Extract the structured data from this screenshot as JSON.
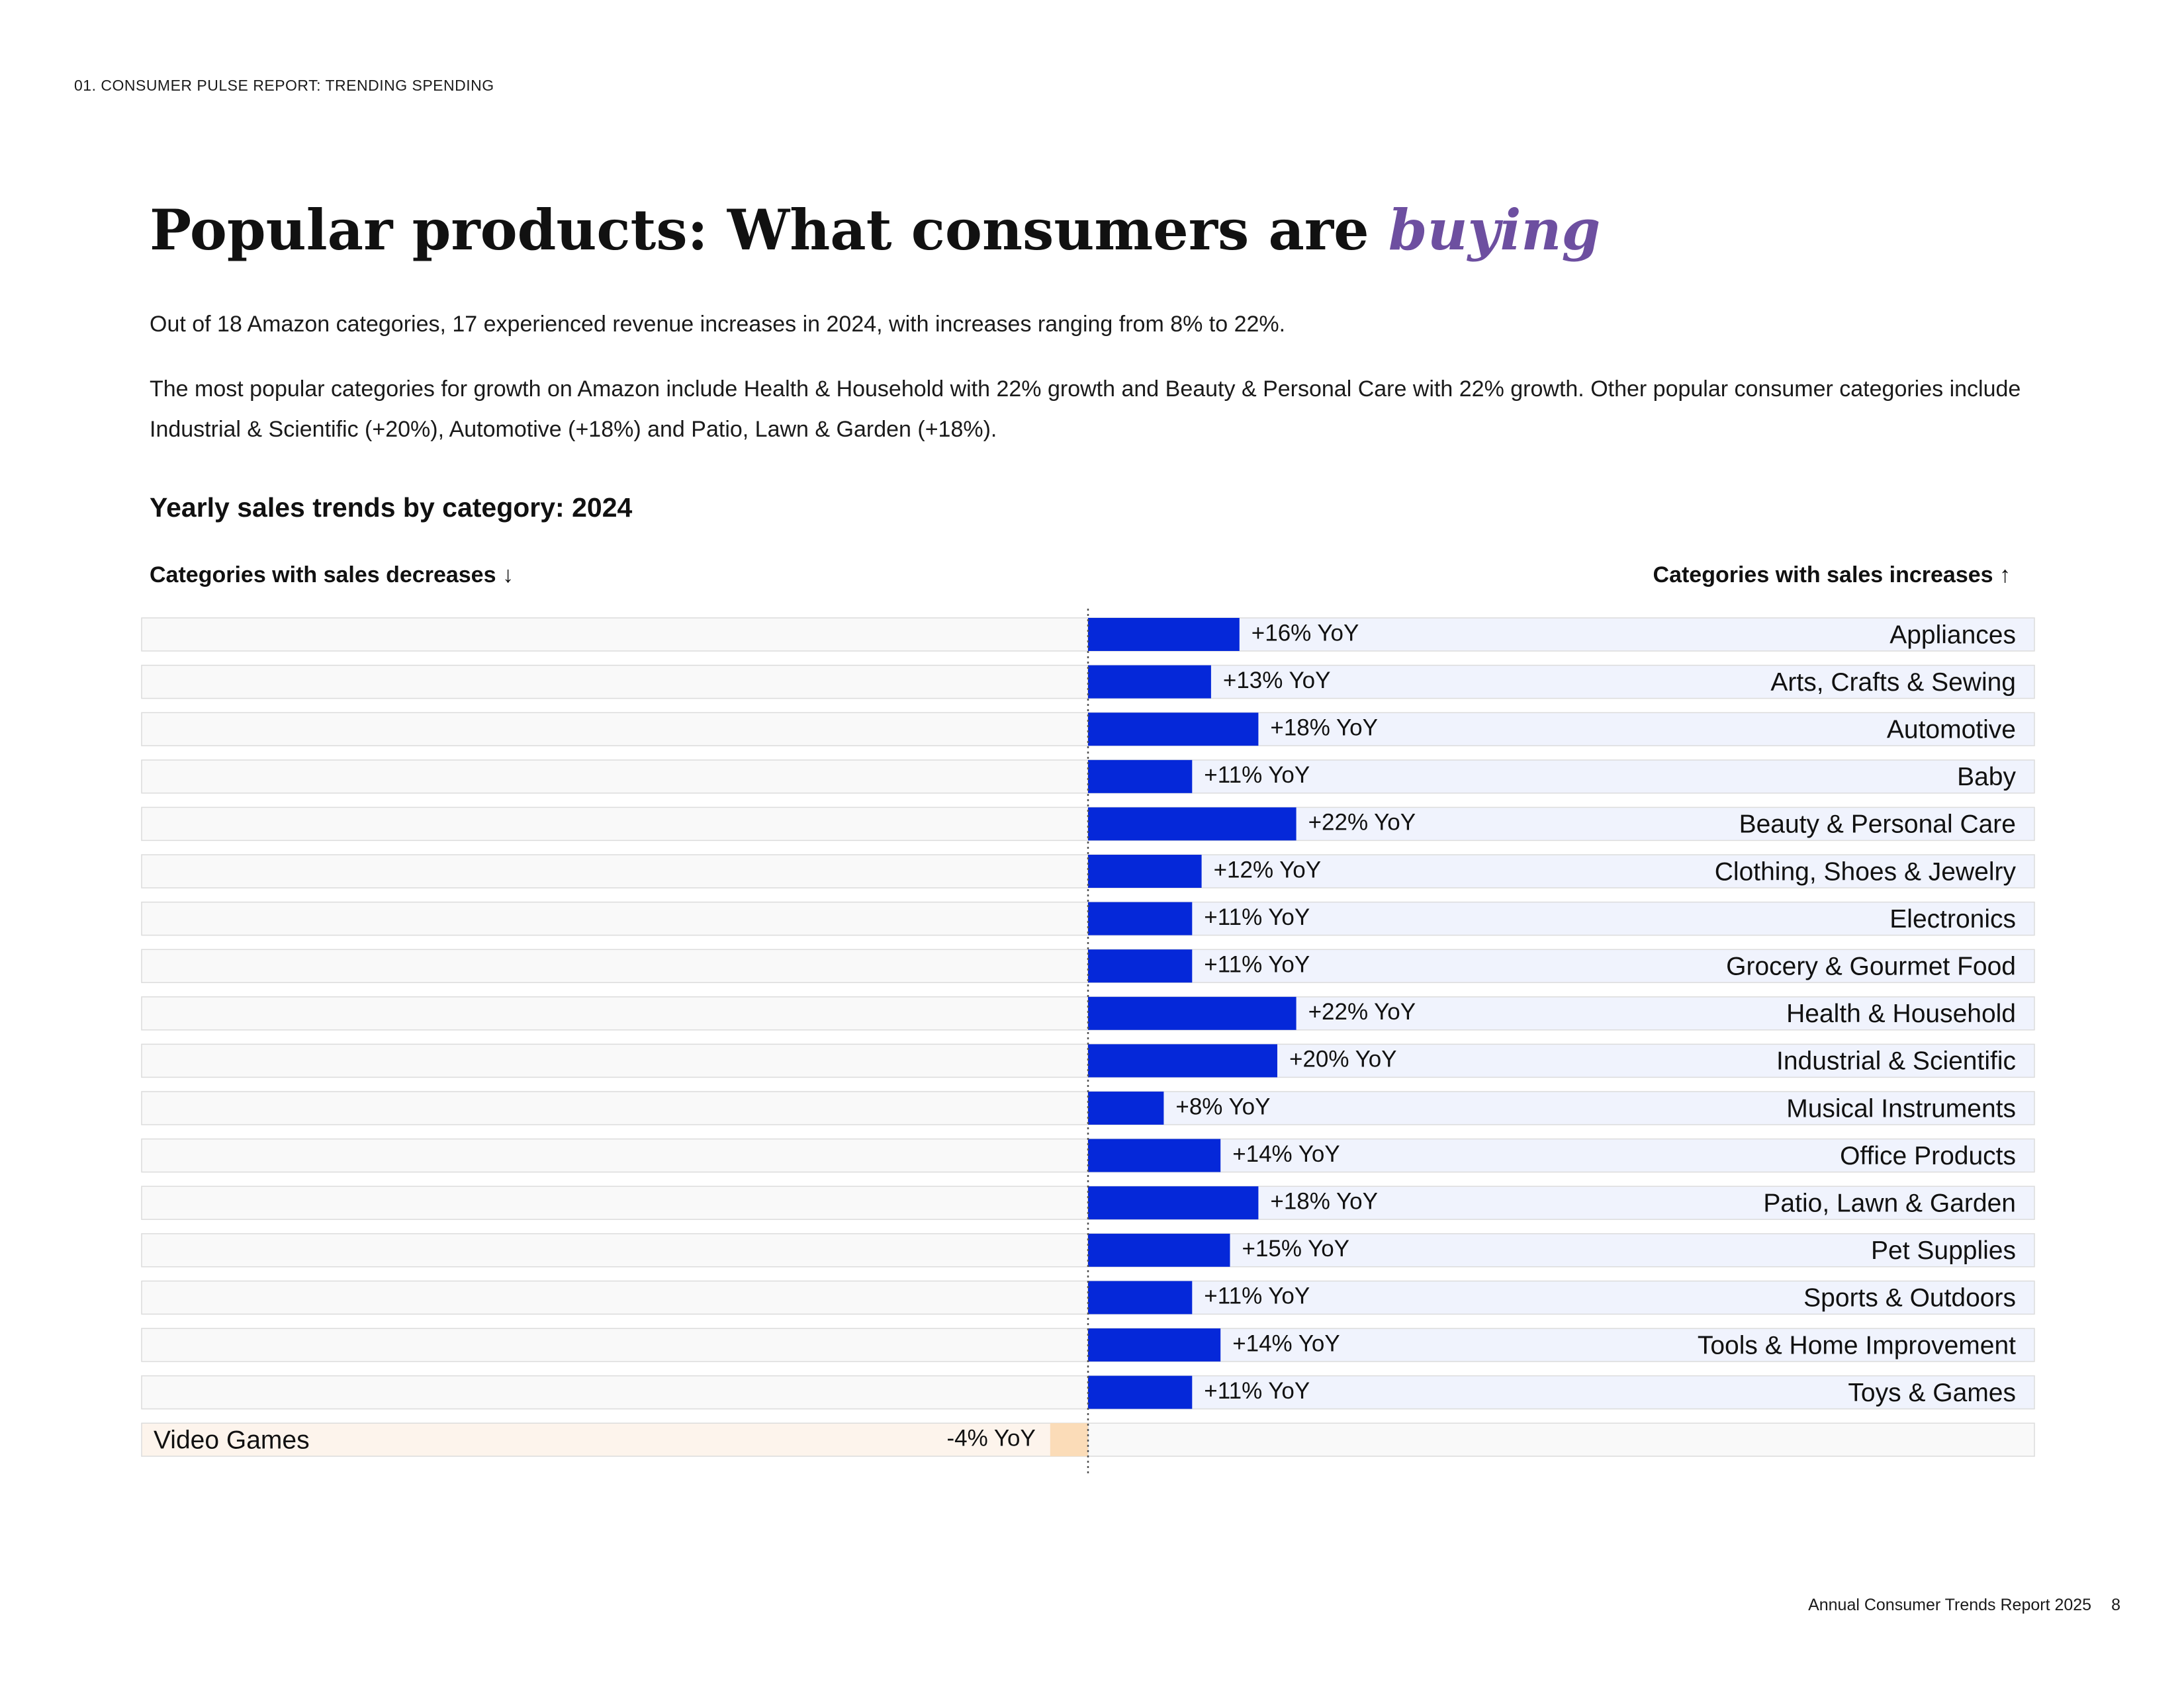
{
  "header": {
    "section_label": "01. CONSUMER PULSE REPORT: TRENDING SPENDING"
  },
  "title": {
    "main": "Popular products: What consumers are ",
    "accent": "buying"
  },
  "intro": {
    "paragraph1": "Out of 18 Amazon categories, 17 experienced revenue increases in 2024, with increases ranging from 8% to 22%.",
    "paragraph2": "The most popular categories for growth on Amazon include Health & Household with 22% growth and Beauty & Personal Care with 22% growth. Other popular consumer categories include Industrial & Scientific (+20%),  Automotive (+18%) and Patio, Lawn & Garden (+18%)."
  },
  "chart_data": {
    "type": "bar",
    "orientation": "horizontal-diverging",
    "title": "Yearly sales trends by category: 2024",
    "left_legend": "Categories with sales decreases ↓",
    "right_legend": "Categories with sales increases ↑",
    "unit": "% YoY",
    "categories": [
      "Appliances",
      "Arts, Crafts & Sewing",
      "Automotive",
      "Baby",
      "Beauty & Personal Care",
      "Clothing, Shoes & Jewelry",
      "Electronics",
      "Grocery & Gourmet Food",
      "Health & Household",
      "Industrial & Scientific",
      "Musical Instruments",
      "Office Products",
      "Patio, Lawn & Garden",
      "Pet Supplies",
      "Sports & Outdoors",
      "Tools & Home Improvement",
      "Toys & Games",
      "Video Games"
    ],
    "values": [
      16,
      13,
      18,
      11,
      22,
      12,
      11,
      11,
      22,
      20,
      8,
      14,
      18,
      15,
      11,
      14,
      11,
      -4
    ],
    "data_labels": [
      "+16% YoY",
      "+13% YoY",
      "+18% YoY",
      "+11% YoY",
      "+22% YoY",
      "+12% YoY",
      "+11% YoY",
      "+11% YoY",
      "+22% YoY",
      "+20% YoY",
      "+8% YoY",
      "+14% YoY",
      "+18% YoY",
      "+15% YoY",
      "+11% YoY",
      "+14% YoY",
      "+11% YoY",
      "-4% YoY"
    ],
    "xlim": [
      -100,
      100
    ],
    "colors": {
      "increase": "#0528d9",
      "increase_track": "#f0f3fd",
      "decrease": "#fbdcb8",
      "decrease_track": "#fdf4ec",
      "empty_track": "#f9f9f9",
      "track_border": "#dcdcdc",
      "zero_line": "#555555"
    }
  },
  "footer": {
    "report_name": "Annual Consumer Trends Report 2025",
    "page_number": "8"
  }
}
